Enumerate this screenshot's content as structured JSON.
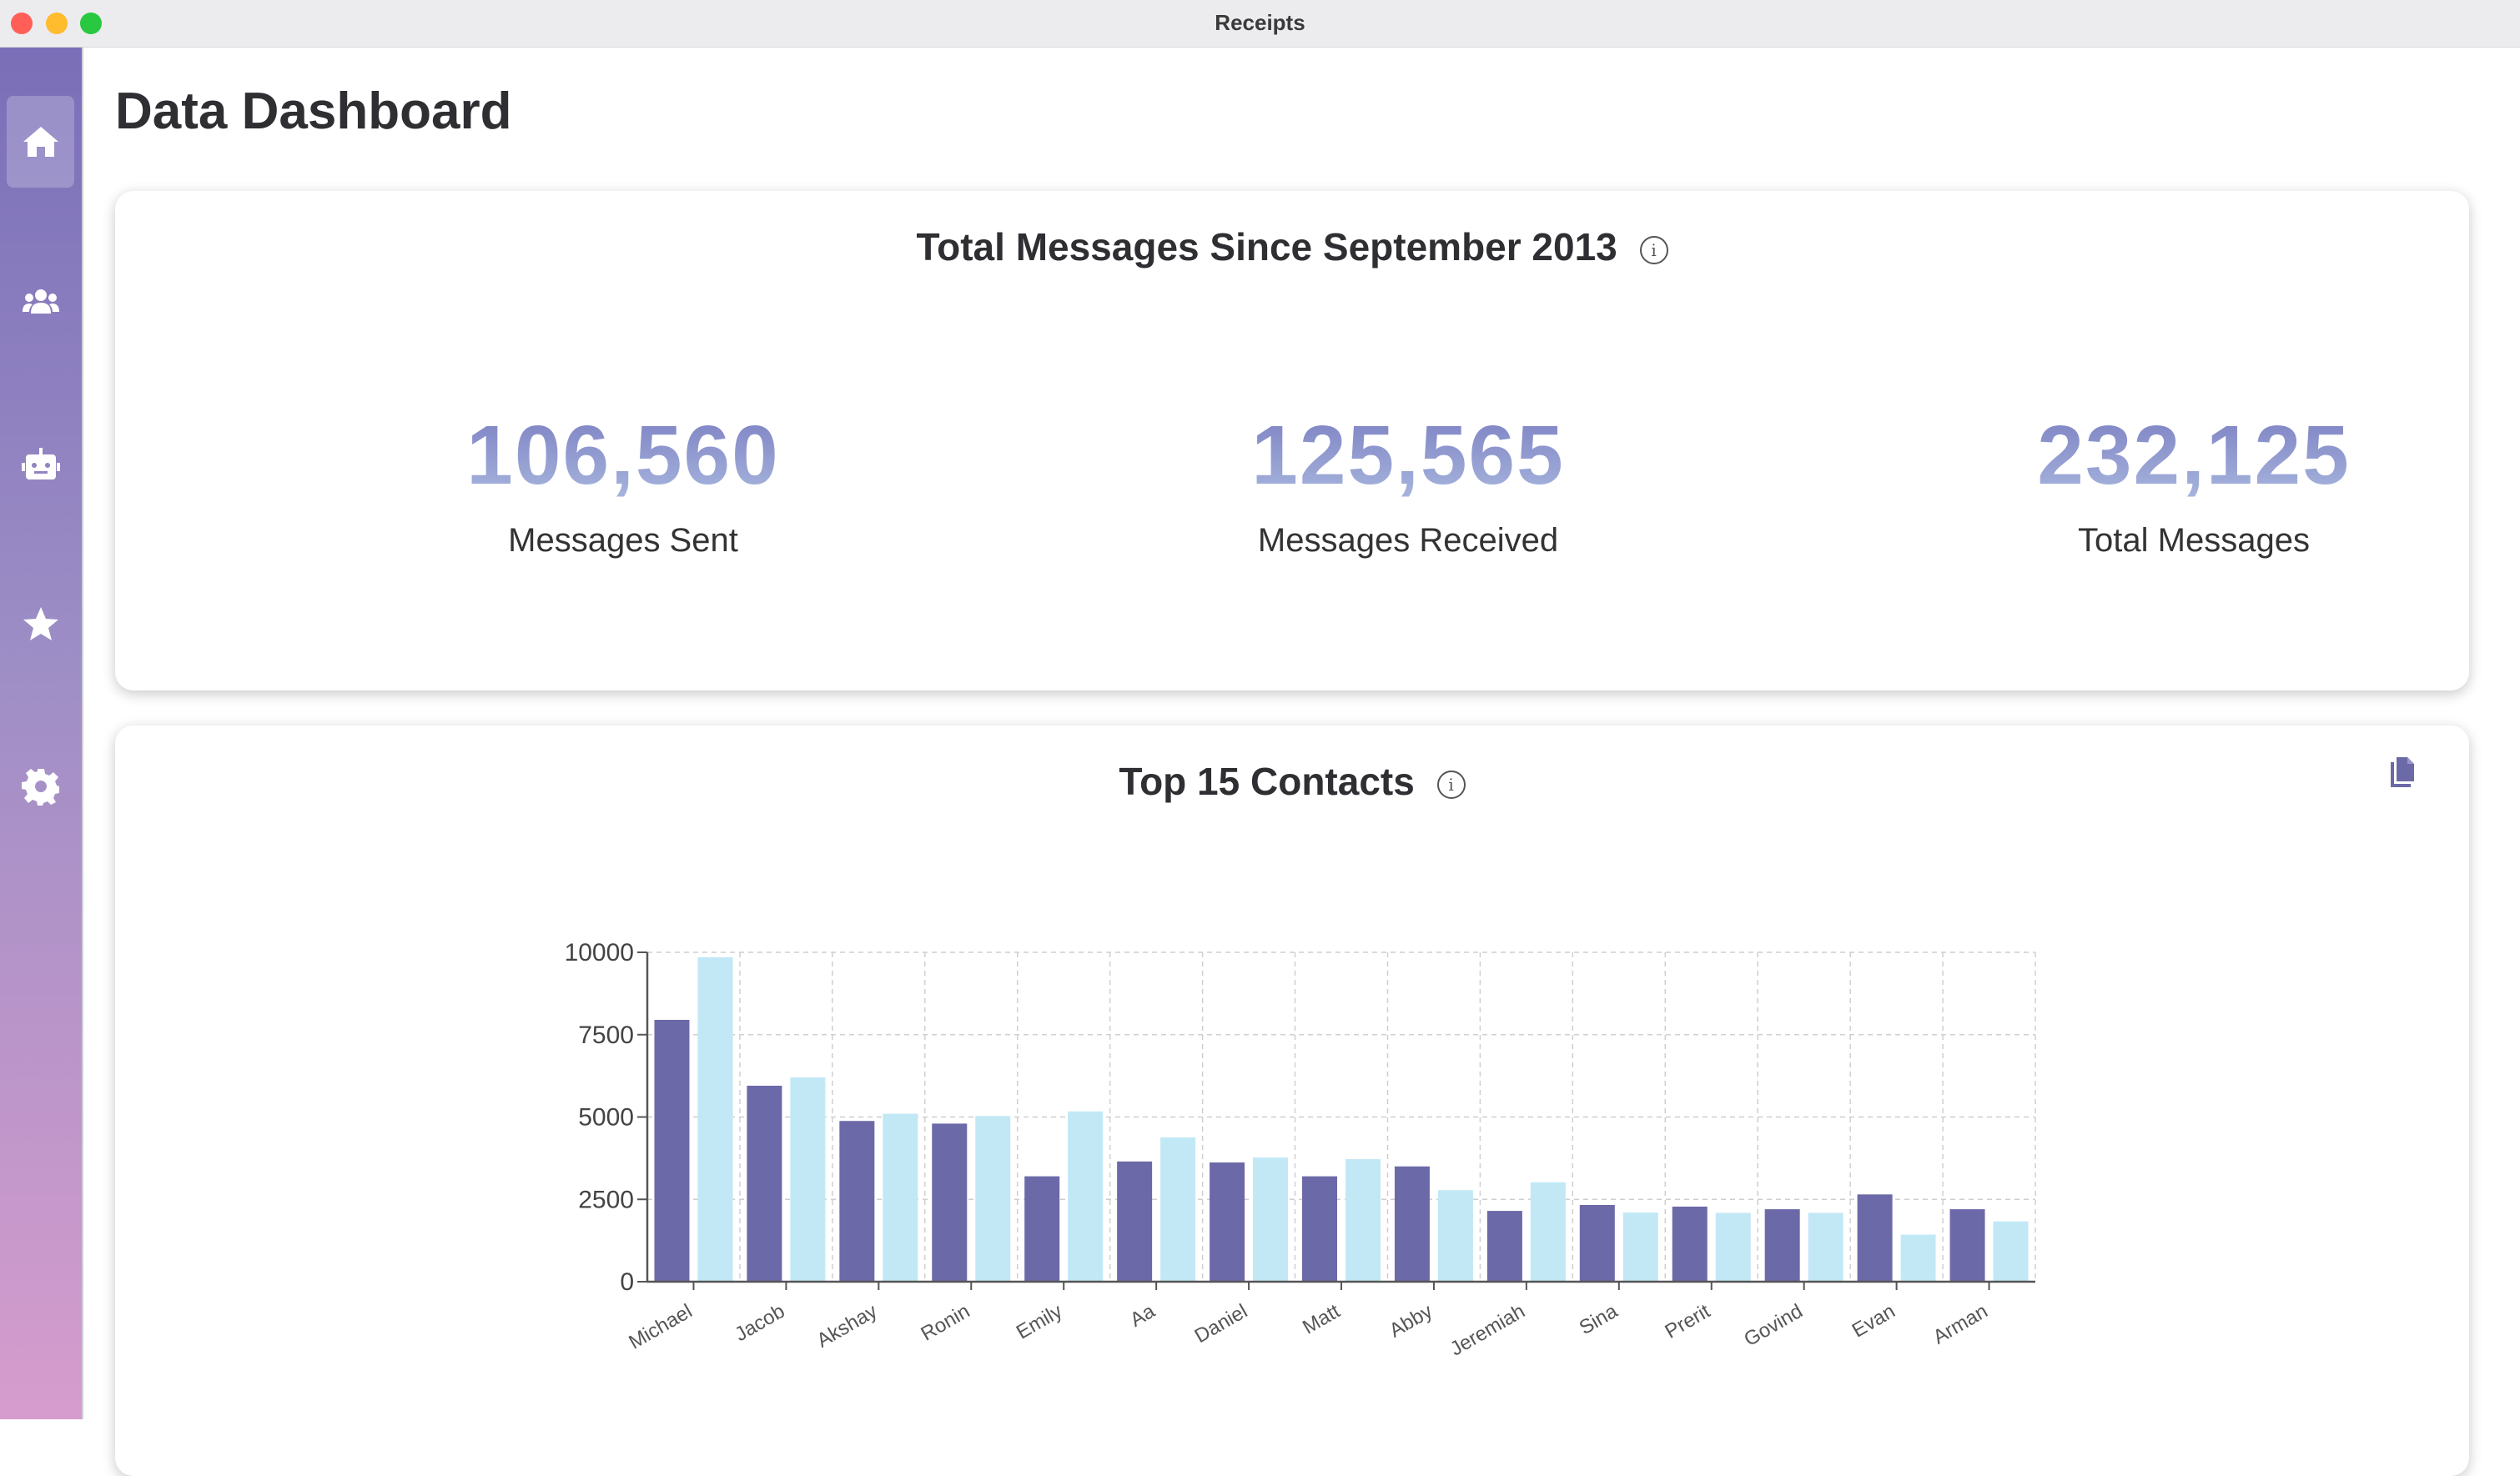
{
  "window": {
    "title": "Receipts"
  },
  "sidebar": {
    "items": [
      {
        "icon": "home-icon",
        "active": true
      },
      {
        "icon": "users-icon",
        "active": false
      },
      {
        "icon": "robot-icon",
        "active": false
      },
      {
        "icon": "star-icon",
        "active": false
      },
      {
        "icon": "gear-icon",
        "active": false
      }
    ]
  },
  "header": {
    "title": "Data Dashboard"
  },
  "totals": {
    "title": "Total Messages Since September 2013",
    "stats": [
      {
        "value": "106,560",
        "label": "Messages Sent"
      },
      {
        "value": "125,565",
        "label": "Messages Received"
      },
      {
        "value": "232,125",
        "label": "Total Messages"
      }
    ]
  },
  "contacts": {
    "title": "Top 15 Contacts"
  },
  "colors": {
    "sent": "#6c69a8",
    "received": "#c2e8f5",
    "accent": "#6c69a8"
  },
  "chart_data": {
    "type": "bar",
    "title": "Top 15 Contacts",
    "categories": [
      "Michael",
      "Jacob",
      "Akshay",
      "Ronin",
      "Emily",
      "Aa",
      "Daniel",
      "Matt",
      "Abby",
      "Jeremiah",
      "Sina",
      "Prerit",
      "Govind",
      "Evan",
      "Arman"
    ],
    "series": [
      {
        "values": [
          7950,
          5950,
          4880,
          4800,
          3200,
          3650,
          3620,
          3200,
          3500,
          2150,
          2330,
          2280,
          2200,
          2650,
          2200
        ]
      },
      {
        "values": [
          9850,
          6200,
          5100,
          5030,
          5170,
          4380,
          3770,
          3720,
          2780,
          3020,
          2100,
          2090,
          2090,
          1430,
          1830
        ]
      }
    ],
    "yticks": [
      "0",
      "2500",
      "5000",
      "7500",
      "10000"
    ],
    "ylim": [
      0,
      10000
    ],
    "grid": true
  }
}
